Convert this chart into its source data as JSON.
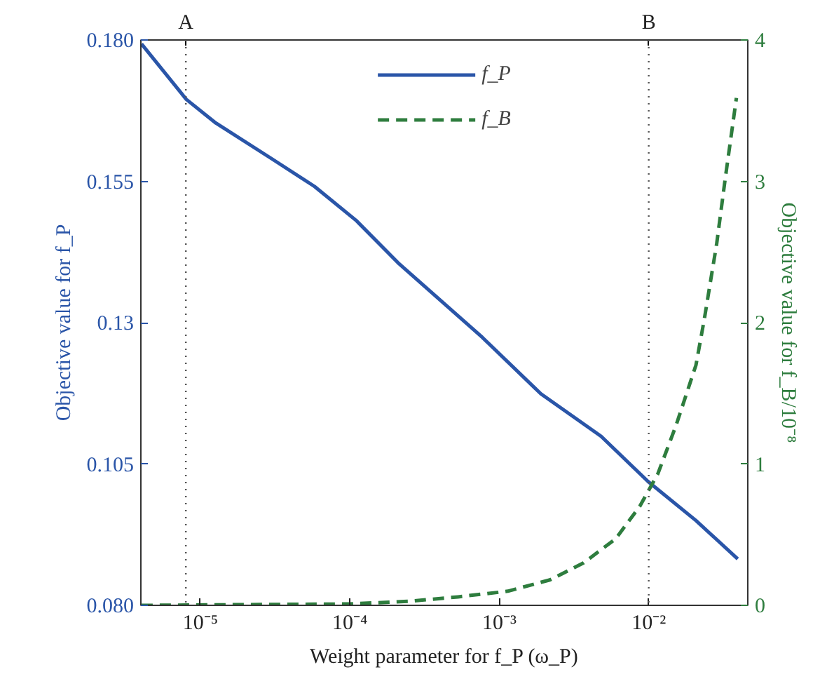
{
  "chart_data": {
    "type": "line",
    "xlabel": "Weight parameter for f_P (ω_P)",
    "ylabel": "Objective value for f_P",
    "y2label": "Objective value for f_B/10⁻⁸",
    "log": "x",
    "grid": false,
    "legend": "top",
    "xlim": [
      4e-06,
      0.046
    ],
    "xticks": [
      {
        "value": 1e-05,
        "label": "10⁻⁵"
      },
      {
        "value": 0.0001,
        "label": "10⁻⁴"
      },
      {
        "value": 0.001,
        "label": "10⁻³"
      },
      {
        "value": 0.01,
        "label": "10⁻²"
      }
    ],
    "ylim": [
      0.08,
      0.18
    ],
    "yticks": [
      {
        "value": 0.08,
        "label": "0.080"
      },
      0.105,
      0.13,
      0.155,
      {
        "value": 0.18,
        "label": "0.180"
      }
    ],
    "y2lim": [
      0,
      4
    ],
    "y2ticks": [
      0,
      1,
      2,
      3,
      4
    ],
    "series": [
      {
        "name": "f_P",
        "color": "#2a55a8",
        "line_style": "solid",
        "x": [
          4.04e-06,
          8.05e-06,
          1.27e-05,
          3e-05,
          5.8e-05,
          0.00011,
          0.00021,
          0.00077,
          0.0019,
          0.0048,
          0.0099,
          0.0207,
          0.0394
        ],
        "values": [
          0.1793,
          0.1695,
          0.1653,
          0.159,
          0.1541,
          0.1481,
          0.1406,
          0.1274,
          0.1174,
          0.1099,
          0.1019,
          0.095,
          0.0882
        ]
      },
      {
        "name": "f_B",
        "color": "#2e7d3e",
        "line_style": "dashed",
        "axis": "y2",
        "x": [
          4.04e-06,
          0.0001,
          0.00026,
          0.00053,
          0.00114,
          0.00218,
          0.00366,
          0.006,
          0.0087,
          0.0115,
          0.0152,
          0.0207,
          0.0235,
          0.0285,
          0.0325,
          0.0386
        ],
        "values": [
          0,
          0.01,
          0.03,
          0.06,
          0.1,
          0.18,
          0.3,
          0.47,
          0.7,
          0.93,
          1.27,
          1.7,
          2.02,
          2.56,
          3.02,
          3.59
        ]
      }
    ],
    "ref_lines": [
      {
        "axis": "x",
        "value": 8e-06,
        "label": "A",
        "color": "#555555",
        "line_style": "dotted"
      },
      {
        "axis": "x",
        "value": 0.01,
        "label": "B",
        "color": "#555555",
        "line_style": "dotted"
      }
    ]
  }
}
